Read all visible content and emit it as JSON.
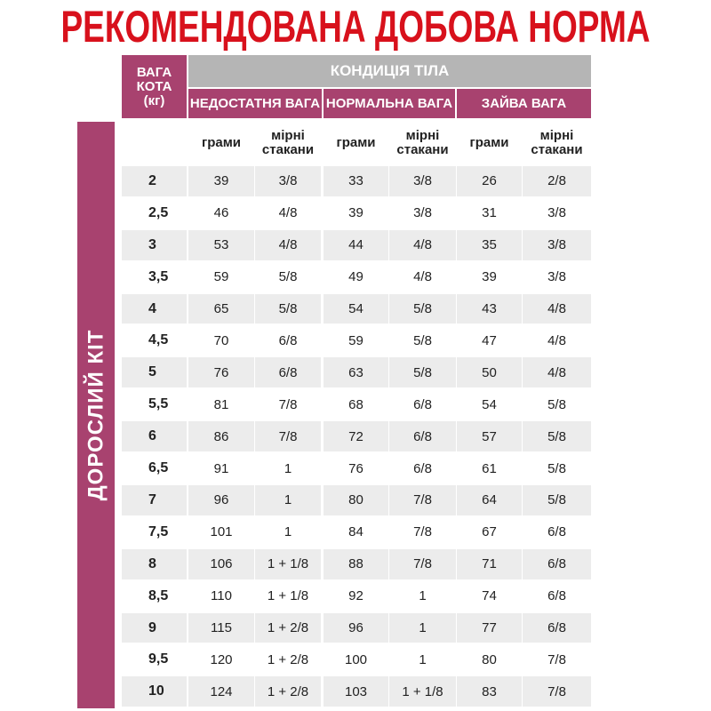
{
  "title": "РЕКОМЕНДОВАНА ДОБОВА НОРМА",
  "table": {
    "row_group_label": "ДОРОСЛИЙ КІТ",
    "weight_header": "ВАГА КОТА (кг)",
    "condition_header": "КОНДИЦІЯ ТІЛА",
    "groups": [
      "НЕДОСТАТНЯ ВАГА",
      "НОРМАЛЬНА ВАГА",
      "ЗАЙВА ВАГА"
    ],
    "subheaders": [
      "грами",
      "мірні стакани",
      "грами",
      "мірні стакани",
      "грами",
      "мірні стакани"
    ],
    "rows": [
      [
        "2",
        "39",
        "3/8",
        "33",
        "3/8",
        "26",
        "2/8"
      ],
      [
        "2,5",
        "46",
        "4/8",
        "39",
        "3/8",
        "31",
        "3/8"
      ],
      [
        "3",
        "53",
        "4/8",
        "44",
        "4/8",
        "35",
        "3/8"
      ],
      [
        "3,5",
        "59",
        "5/8",
        "49",
        "4/8",
        "39",
        "3/8"
      ],
      [
        "4",
        "65",
        "5/8",
        "54",
        "5/8",
        "43",
        "4/8"
      ],
      [
        "4,5",
        "70",
        "6/8",
        "59",
        "5/8",
        "47",
        "4/8"
      ],
      [
        "5",
        "76",
        "6/8",
        "63",
        "5/8",
        "50",
        "4/8"
      ],
      [
        "5,5",
        "81",
        "7/8",
        "68",
        "6/8",
        "54",
        "5/8"
      ],
      [
        "6",
        "86",
        "7/8",
        "72",
        "6/8",
        "57",
        "5/8"
      ],
      [
        "6,5",
        "91",
        "1",
        "76",
        "6/8",
        "61",
        "5/8"
      ],
      [
        "7",
        "96",
        "1",
        "80",
        "7/8",
        "64",
        "5/8"
      ],
      [
        "7,5",
        "101",
        "1",
        "84",
        "7/8",
        "67",
        "6/8"
      ],
      [
        "8",
        "106",
        "1 + 1/8",
        "88",
        "7/8",
        "71",
        "6/8"
      ],
      [
        "8,5",
        "110",
        "1 + 1/8",
        "92",
        "1",
        "74",
        "6/8"
      ],
      [
        "9",
        "115",
        "1 + 2/8",
        "96",
        "1",
        "77",
        "6/8"
      ],
      [
        "9,5",
        "120",
        "1 + 2/8",
        "100",
        "1",
        "80",
        "7/8"
      ],
      [
        "10",
        "124",
        "1 + 2/8",
        "103",
        "1 + 1/8",
        "83",
        "7/8"
      ]
    ]
  }
}
